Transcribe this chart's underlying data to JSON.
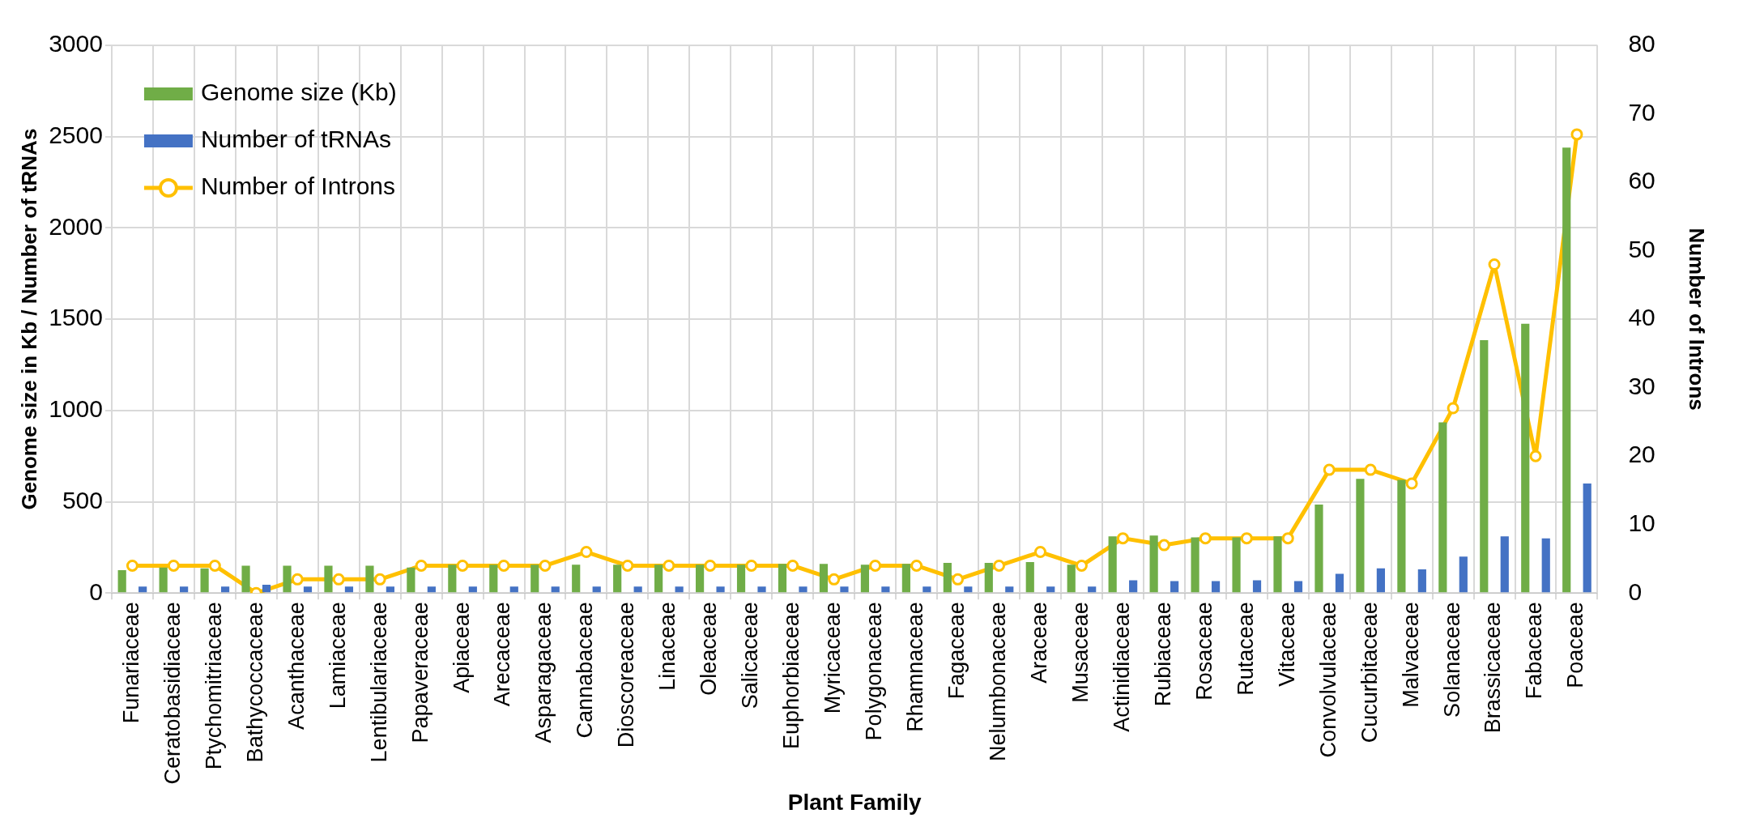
{
  "chart_data": {
    "type": "bar",
    "xlabel": "Plant Family",
    "ylabel": "Genome size in Kb / Number of tRNAs",
    "y2label": "Number of Introns",
    "categories": [
      "Funariaceae",
      "Ceratobasidiaceae",
      "Ptychomitriaceae",
      "Bathycoccaceae",
      "Acanthaceae",
      "Lamiaceae",
      "Lentibulariaceae",
      "Papaveraceae",
      "Apiaceae",
      "Arecaceae",
      "Asparagaceae",
      "Cannabaceae",
      "Dioscoreaceae",
      "Linaceae",
      "Oleaceae",
      "Salicaceae",
      "Euphorbiaceae",
      "Myricaceae",
      "Polygonaceae",
      "Rhamnaceae",
      "Fagaceae",
      "Nelumbonaceae",
      "Araceae",
      "Musaceae",
      "Actinidiaceae",
      "Rubiaceae",
      "Rosaceae",
      "Rutaceae",
      "Vitaceae",
      "Convolvulaceae",
      "Cucurbitaceae",
      "Malvaceae",
      "Solanaceae",
      "Brassicaceae",
      "Fabaceae",
      "Poaceae"
    ],
    "series": [
      {
        "name": "Genome size (Kb)",
        "color": "#70ad47",
        "values": [
          125,
          140,
          135,
          150,
          150,
          150,
          150,
          140,
          155,
          155,
          155,
          155,
          155,
          155,
          155,
          155,
          160,
          160,
          155,
          160,
          165,
          165,
          170,
          155,
          310,
          315,
          305,
          305,
          310,
          485,
          625,
          620,
          935,
          1385,
          1475,
          2440
        ]
      },
      {
        "name": "Number of tRNAs",
        "color": "#4472c4",
        "values": [
          35,
          35,
          35,
          45,
          35,
          35,
          35,
          35,
          35,
          35,
          35,
          35,
          35,
          35,
          35,
          35,
          35,
          35,
          35,
          35,
          35,
          35,
          35,
          35,
          70,
          65,
          65,
          70,
          65,
          105,
          135,
          130,
          200,
          310,
          300,
          600
        ]
      },
      {
        "name": "Number of Introns",
        "type": "line",
        "axis": "y2",
        "color": "#ffc000",
        "values": [
          4,
          4,
          4,
          0,
          2,
          2,
          2,
          4,
          4,
          4,
          4,
          6,
          4,
          4,
          4,
          4,
          4,
          2,
          4,
          4,
          2,
          4,
          6,
          4,
          8,
          7,
          8,
          8,
          8,
          18,
          18,
          16,
          27,
          48,
          20,
          67
        ]
      }
    ],
    "ylim": [
      0,
      3000
    ],
    "yticks": [
      0,
      500,
      1000,
      1500,
      2000,
      2500,
      3000
    ],
    "y2lim": [
      0,
      80
    ],
    "y2ticks": [
      0,
      10,
      20,
      30,
      40,
      50,
      60,
      70,
      80
    ],
    "grid": true,
    "legend": "top left",
    "marker": "circle",
    "line_style": "solid"
  }
}
